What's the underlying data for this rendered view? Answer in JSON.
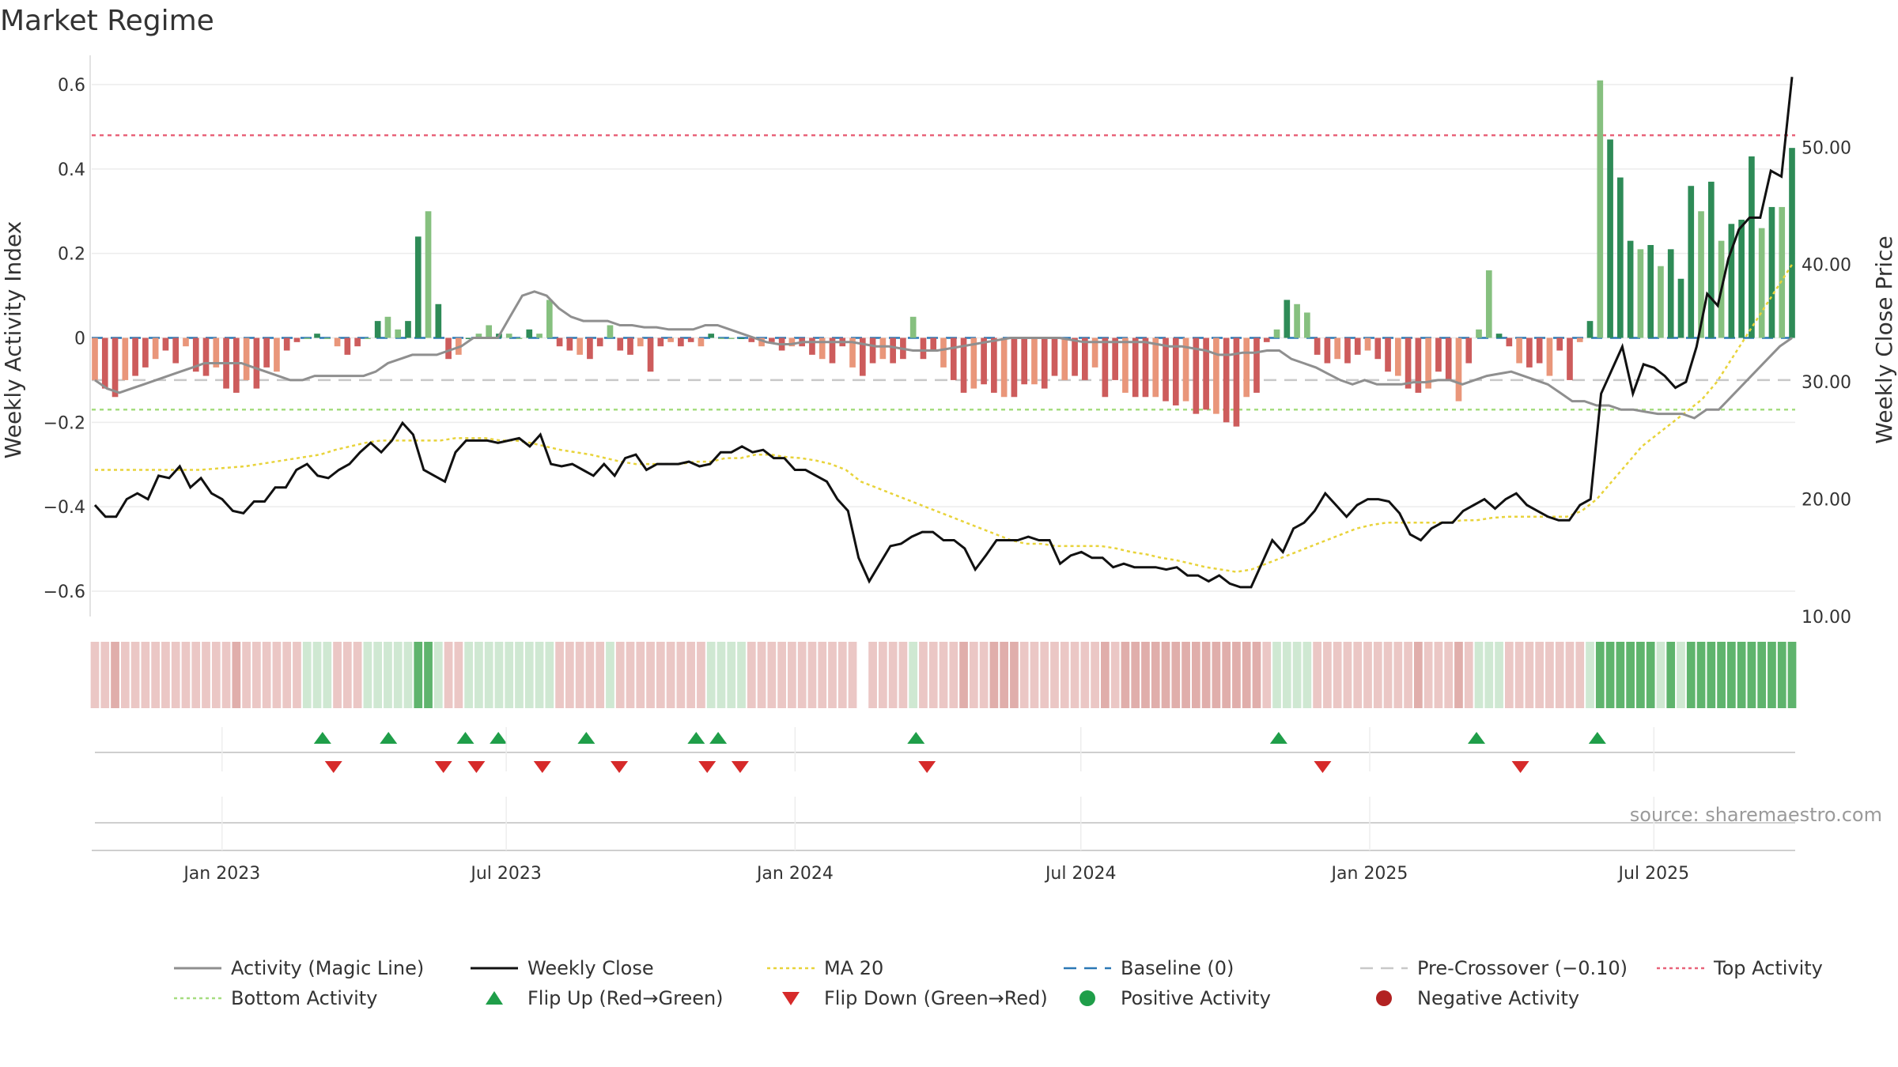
{
  "chart_data": {
    "type": "bar",
    "title": "Market Regime",
    "source": "source: sharemaestro.com",
    "ylabel_left": "Weekly Activity Index",
    "ylabel_right": "Weekly Close Price",
    "ylim_left": [
      -0.66,
      0.66
    ],
    "ylim_right": [
      10.0,
      57.5
    ],
    "yticks_left": [
      "0.6",
      "0.4",
      "0.2",
      "0",
      "−0.2",
      "−0.4",
      "−0.6"
    ],
    "yticks_right": [
      "50.00",
      "40.00",
      "30.00",
      "20.00",
      "10.00"
    ],
    "x_range": [
      "2022-10-10",
      "2025-09-29"
    ],
    "xticks": [
      "Jan 2023",
      "Jul 2023",
      "Jan 2024",
      "Jul 2024",
      "Jan 2025",
      "Jul 2025"
    ],
    "reference_lines": {
      "baseline": 0,
      "pre_crossover": -0.1,
      "top_activity": 0.48,
      "bottom_activity": -0.17
    },
    "activity_weekly": [
      -0.1,
      -0.12,
      -0.14,
      -0.1,
      -0.09,
      -0.07,
      -0.05,
      -0.03,
      -0.06,
      -0.02,
      -0.08,
      -0.09,
      -0.07,
      -0.12,
      -0.13,
      -0.1,
      -0.12,
      -0.07,
      -0.08,
      -0.03,
      -0.01,
      0.0,
      0.01,
      0.0,
      -0.02,
      -0.04,
      -0.02,
      0.0,
      0.04,
      0.05,
      0.02,
      0.04,
      0.24,
      0.3,
      0.08,
      -0.05,
      -0.04,
      0.0,
      0.01,
      0.03,
      0.01,
      0.01,
      0.0,
      0.02,
      0.01,
      0.09,
      -0.02,
      -0.03,
      -0.04,
      -0.05,
      -0.02,
      0.03,
      -0.03,
      -0.04,
      -0.02,
      -0.08,
      -0.02,
      -0.01,
      -0.02,
      -0.01,
      -0.02,
      0.01,
      0.0,
      0.0,
      0.0,
      -0.01,
      -0.02,
      -0.01,
      -0.03,
      -0.02,
      -0.02,
      -0.04,
      -0.05,
      -0.06,
      -0.02,
      -0.07,
      -0.09,
      -0.06,
      -0.05,
      -0.06,
      -0.05,
      0.05,
      -0.05,
      -0.03,
      -0.07,
      -0.1,
      -0.13,
      -0.12,
      -0.11,
      -0.13,
      -0.14,
      -0.14,
      -0.11,
      -0.11,
      -0.12,
      -0.09,
      -0.1,
      -0.09,
      -0.1,
      -0.07,
      -0.14,
      -0.1,
      -0.13,
      -0.14,
      -0.14,
      -0.14,
      -0.15,
      -0.16,
      -0.15,
      -0.18,
      -0.17,
      -0.18,
      -0.2,
      -0.21,
      -0.14,
      -0.13,
      -0.01,
      0.02,
      0.09,
      0.08,
      0.06,
      -0.04,
      -0.06,
      -0.05,
      -0.06,
      -0.04,
      -0.03,
      -0.05,
      -0.08,
      -0.09,
      -0.12,
      -0.13,
      -0.12,
      -0.08,
      -0.1,
      -0.15,
      -0.06,
      0.02,
      0.16,
      0.01,
      -0.02,
      -0.06,
      -0.07,
      -0.06,
      -0.09,
      -0.03,
      -0.1,
      -0.01,
      0.04,
      0.61,
      0.47,
      0.38,
      0.23,
      0.21,
      0.22,
      0.17,
      0.21,
      0.14,
      0.36,
      0.3,
      0.37,
      0.23,
      0.27,
      0.28,
      0.43,
      0.26,
      0.31,
      0.31,
      0.45
    ],
    "magic_line": [
      -0.1,
      -0.12,
      -0.13,
      -0.12,
      -0.11,
      -0.1,
      -0.09,
      -0.08,
      -0.07,
      -0.06,
      -0.06,
      -0.06,
      -0.06,
      -0.07,
      -0.08,
      -0.09,
      -0.1,
      -0.1,
      -0.09,
      -0.09,
      -0.09,
      -0.09,
      -0.09,
      -0.08,
      -0.06,
      -0.05,
      -0.04,
      -0.04,
      -0.04,
      -0.03,
      -0.02,
      0.0,
      0.0,
      0.0,
      0.05,
      0.1,
      0.11,
      0.1,
      0.07,
      0.05,
      0.04,
      0.04,
      0.04,
      0.03,
      0.03,
      0.025,
      0.025,
      0.02,
      0.02,
      0.02,
      0.03,
      0.03,
      0.02,
      0.01,
      0.0,
      -0.01,
      -0.015,
      -0.015,
      -0.01,
      -0.01,
      -0.01,
      -0.01,
      -0.01,
      -0.015,
      -0.02,
      -0.02,
      -0.025,
      -0.03,
      -0.03,
      -0.03,
      -0.025,
      -0.02,
      -0.015,
      -0.01,
      -0.005,
      0.0,
      0.0,
      0.0,
      0.0,
      0.0,
      -0.005,
      -0.01,
      -0.01,
      -0.01,
      -0.01,
      -0.01,
      -0.01,
      -0.015,
      -0.02,
      -0.02,
      -0.025,
      -0.03,
      -0.04,
      -0.04,
      -0.035,
      -0.035,
      -0.03,
      -0.03,
      -0.05,
      -0.06,
      -0.07,
      -0.085,
      -0.1,
      -0.11,
      -0.1,
      -0.11,
      -0.11,
      -0.11,
      -0.105,
      -0.105,
      -0.1,
      -0.1,
      -0.11,
      -0.1,
      -0.09,
      -0.085,
      -0.08,
      -0.09,
      -0.1,
      -0.11,
      -0.13,
      -0.15,
      -0.15,
      -0.16,
      -0.16,
      -0.17,
      -0.17,
      -0.175,
      -0.18,
      -0.18,
      -0.18,
      -0.19,
      -0.17,
      -0.17,
      -0.14,
      -0.11,
      -0.08,
      -0.05,
      -0.02,
      0.0
    ],
    "weekly_close": [
      19.5,
      18.5,
      18.5,
      20.0,
      20.5,
      20.0,
      22.0,
      21.8,
      22.8,
      21.0,
      21.8,
      20.5,
      20.0,
      19.0,
      18.8,
      19.8,
      19.8,
      21.0,
      21.0,
      22.5,
      23.0,
      22.0,
      21.8,
      22.5,
      23.0,
      24.0,
      24.8,
      24.0,
      25.0,
      26.5,
      25.5,
      22.5,
      22.0,
      21.5,
      24.0,
      25.0,
      25.0,
      25.0,
      24.8,
      25.0,
      25.2,
      24.5,
      25.5,
      23.0,
      22.8,
      23.0,
      22.5,
      22.0,
      23.0,
      22.0,
      23.5,
      23.8,
      22.5,
      23.0,
      23.0,
      23.0,
      23.2,
      22.8,
      23.0,
      24.0,
      24.0,
      24.5,
      24.0,
      24.2,
      23.5,
      23.5,
      22.5,
      22.5,
      22.0,
      21.5,
      20.0,
      19.0,
      15.0,
      13.0,
      14.5,
      16.0,
      16.2,
      16.8,
      17.2,
      17.2,
      16.5,
      16.5,
      15.8,
      14.0,
      15.2,
      16.5,
      16.5,
      16.5,
      16.8,
      16.5,
      16.5,
      14.5,
      15.2,
      15.5,
      15.0,
      15.0,
      14.2,
      14.5,
      14.2,
      14.2,
      14.2,
      14.0,
      14.2,
      13.5,
      13.5,
      13.0,
      13.5,
      12.8,
      12.5,
      12.5,
      14.5,
      16.5,
      15.5,
      17.5,
      18.0,
      19.0,
      20.5,
      19.5,
      18.5,
      19.5,
      20.0,
      20.0,
      19.8,
      18.8,
      17.0,
      16.5,
      17.5,
      18.0,
      18.0,
      19.0,
      19.5,
      20.0,
      19.2,
      20.0,
      20.5,
      19.5,
      19.0,
      18.5,
      18.2,
      18.2,
      19.5,
      20.0,
      29.0,
      31.0,
      33.0,
      29.0,
      31.5,
      31.2,
      30.5,
      29.5,
      30.0,
      33.0,
      37.5,
      36.5,
      40.5,
      43.0,
      44.0,
      44.0,
      48.0,
      47.5,
      56.0
    ],
    "ma20": [
      22.5,
      22.5,
      22.5,
      22.5,
      22.5,
      22.5,
      22.5,
      22.5,
      22.6,
      22.7,
      22.8,
      23.0,
      23.2,
      23.4,
      23.6,
      23.8,
      24.2,
      24.5,
      24.8,
      25.0,
      25.0,
      25.0,
      25.0,
      25.0,
      25.2,
      25.2,
      25.2,
      25.0,
      25.0,
      24.8,
      24.5,
      24.2,
      24.0,
      23.8,
      23.5,
      23.2,
      23.0,
      23.0,
      23.0,
      23.0,
      23.2,
      23.2,
      23.5,
      23.5,
      23.8,
      23.8,
      23.6,
      23.5,
      23.3,
      23.0,
      22.5,
      21.5,
      21.0,
      20.5,
      20.0,
      19.5,
      19.0,
      18.5,
      18.0,
      17.5,
      17.0,
      16.5,
      16.2,
      16.2,
      16.0,
      16.0,
      16.0,
      16.0,
      15.8,
      15.5,
      15.3,
      15.0,
      14.8,
      14.5,
      14.2,
      14.0,
      13.8,
      14.0,
      14.5,
      15.0,
      15.5,
      16.0,
      16.5,
      17.0,
      17.5,
      17.8,
      18.0,
      18.0,
      18.0,
      18.0,
      18.0,
      18.2,
      18.2,
      18.4,
      18.5,
      18.5,
      18.5,
      18.5,
      18.5,
      19.0,
      20.0,
      21.5,
      23.0,
      24.5,
      25.5,
      26.5,
      27.5,
      28.5,
      30.0,
      32.0,
      34.0,
      36.0,
      38.0,
      40.0
    ],
    "ribbon_note": "",
    "flip_up_x": [
      "2023-03-06",
      "2023-04-17",
      "2023-06-05",
      "2023-06-26",
      "2023-08-21",
      "2023-10-30",
      "2023-11-13",
      "2024-03-18",
      "2024-11-04",
      "2025-03-10",
      "2025-05-26"
    ],
    "flip_down_x": [
      "2023-03-13",
      "2023-05-22",
      "2023-06-12",
      "2023-07-24",
      "2023-09-11",
      "2023-11-06",
      "2023-11-27",
      "2024-03-25",
      "2024-12-02",
      "2025-04-07"
    ],
    "legend": [
      {
        "label": "Activity (Magic Line)",
        "kind": "line",
        "color": "#8f8f8f"
      },
      {
        "label": "Weekly Close",
        "kind": "line",
        "color": "#111111"
      },
      {
        "label": "MA 20",
        "kind": "dotted",
        "color": "#e8d33a"
      },
      {
        "label": "Baseline (0)",
        "kind": "dashed",
        "color": "#2a78b5"
      },
      {
        "label": "Pre-Crossover (−0.10)",
        "kind": "dashed",
        "color": "#c8c8c8"
      },
      {
        "label": "Top Activity",
        "kind": "dotted",
        "color": "#e8637a"
      },
      {
        "label": "Bottom Activity",
        "kind": "dotted",
        "color": "#a6dd80"
      },
      {
        "label": "Flip Up (Red→Green)",
        "kind": "tri-up",
        "color": "#1f9e49"
      },
      {
        "label": "Flip Down (Green→Red)",
        "kind": "tri-down",
        "color": "#d62a2a"
      },
      {
        "label": "Positive Activity",
        "kind": "dot",
        "color": "#1f9e49"
      },
      {
        "label": "Negative Activity",
        "kind": "dot",
        "color": "#b22222"
      }
    ],
    "colors": {
      "pos_strong": "#2e8b57",
      "pos_light": "#86c07f",
      "neg_strong": "#cd5c5c",
      "neg_light": "#e9967a",
      "ribbon_pos_light": "#cfe8d2",
      "ribbon_pos_strong": "#5fb46d",
      "ribbon_neg": "#ebc7c5",
      "ribbon_neg_dark": "#e0aeab"
    }
  }
}
